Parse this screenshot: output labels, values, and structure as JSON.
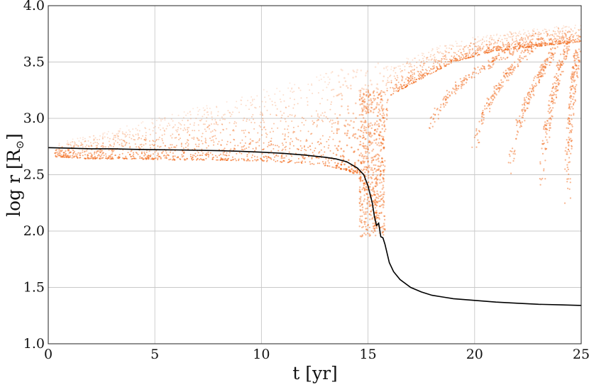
{
  "chart_data": {
    "type": "scatter",
    "xlabel": "t [yr]",
    "ylabel": "log r [R",
    "ylabel_symbol": "⊙",
    "ylabel_close": "]",
    "xlim": [
      0,
      25
    ],
    "ylim": [
      1.0,
      4.0
    ],
    "xticks": [
      "0",
      "5",
      "10",
      "15",
      "20",
      "25"
    ],
    "yticks": [
      "1.0",
      "1.5",
      "2.0",
      "2.5",
      "3.0",
      "3.5",
      "4.0"
    ],
    "grid": true,
    "colors": {
      "particles": "#f26a1b",
      "curve": "#000000",
      "grid": "#c8c8c8"
    },
    "series": [
      {
        "kind": "line",
        "color": "#000000",
        "x": [
          0,
          1,
          2,
          3,
          4,
          5,
          6,
          7,
          8,
          9,
          10,
          11,
          12,
          13,
          13.5,
          14,
          14.5,
          14.8,
          15.0,
          15.2,
          15.3,
          15.4,
          15.5,
          15.6,
          15.7,
          15.8,
          15.9,
          16.0,
          16.2,
          16.5,
          17,
          17.5,
          18,
          18.5,
          19,
          20,
          21,
          22,
          23,
          24,
          25
        ],
        "y": [
          2.74,
          2.735,
          2.73,
          2.73,
          2.725,
          2.722,
          2.72,
          2.717,
          2.713,
          2.708,
          2.7,
          2.69,
          2.675,
          2.655,
          2.64,
          2.615,
          2.56,
          2.5,
          2.4,
          2.25,
          2.13,
          2.05,
          2.07,
          1.95,
          1.94,
          1.88,
          1.8,
          1.72,
          1.64,
          1.57,
          1.5,
          1.46,
          1.43,
          1.415,
          1.4,
          1.385,
          1.37,
          1.36,
          1.35,
          1.345,
          1.34
        ]
      },
      {
        "kind": "scatter-band",
        "color": "#f26a1b",
        "note": "dense particle cloud above the curve",
        "x": [
          0.3,
          2,
          4,
          6,
          8,
          10,
          12,
          13,
          14,
          14.5,
          15,
          15.3,
          15.6,
          16,
          17,
          18,
          19,
          20,
          21,
          22,
          23,
          24,
          25
        ],
        "y_low": [
          2.66,
          2.64,
          2.64,
          2.63,
          2.63,
          2.62,
          2.6,
          2.58,
          2.54,
          2.5,
          2.3,
          2.0,
          2.5,
          3.2,
          3.3,
          3.4,
          3.5,
          3.55,
          3.6,
          3.62,
          3.64,
          3.66,
          3.68
        ],
        "y_high": [
          2.78,
          2.85,
          2.95,
          3.05,
          3.15,
          3.25,
          3.35,
          3.4,
          3.45,
          3.47,
          3.48,
          3.48,
          3.52,
          3.45,
          3.55,
          3.62,
          3.68,
          3.72,
          3.75,
          3.78,
          3.8,
          3.82,
          3.84
        ]
      }
    ]
  }
}
